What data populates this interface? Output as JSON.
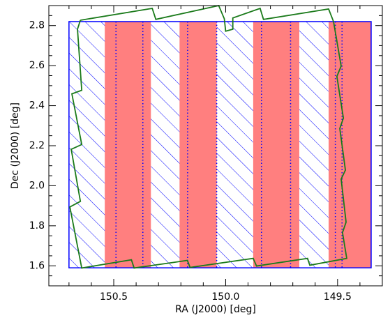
{
  "chart_data": {
    "type": "footprint",
    "xlabel": "RA (J2000) [deg]",
    "ylabel": "Dec (J2000) [deg]",
    "xlim": [
      150.79,
      149.3
    ],
    "ylim": [
      1.5,
      2.9
    ],
    "xticks": [
      150.5,
      {
        "value": 150.0,
        "label": "150.0"
      },
      149.5
    ],
    "yticks": [
      1.6,
      1.8,
      {
        "value": 2.0,
        "label": "2.0"
      },
      2.2,
      2.4,
      2.6,
      2.8
    ],
    "xminorticks": [
      150.7,
      150.6,
      150.4,
      150.3,
      150.2,
      150.1,
      149.9,
      149.8,
      149.7,
      149.6,
      149.4
    ],
    "yminorticks": [
      1.55,
      1.65,
      1.7,
      1.75,
      1.85,
      1.9,
      1.95,
      2.05,
      2.1,
      2.15,
      2.25,
      2.3,
      2.35,
      2.45,
      2.5,
      2.55,
      2.65,
      2.7,
      2.75,
      2.85
    ],
    "field": {
      "color": "#0000ff",
      "ra": [
        150.7,
        149.35
      ],
      "dec": [
        1.59,
        2.82
      ]
    },
    "stripes": {
      "color": "#ff7f7f",
      "ra": [
        [
          150.54,
          150.334
        ],
        [
          150.206,
          150.04
        ],
        [
          149.877,
          149.671
        ],
        [
          149.54,
          149.35
        ]
      ]
    },
    "dotted": {
      "color": "#0000ff",
      "ra": [
        150.49,
        150.37,
        150.17,
        150.04,
        149.84,
        149.71,
        149.51,
        149.48
      ]
    },
    "outline": {
      "color": "#1a7a1a",
      "ra": [
        150.649,
        150.328,
        150.312,
        150.031,
        150.006,
        150.0,
        149.968,
        149.968,
        149.846,
        149.831,
        149.54,
        149.518,
        149.484,
        149.503,
        149.474,
        149.49,
        149.465,
        149.484,
        149.462,
        149.478,
        149.459,
        149.624,
        149.634,
        149.862,
        149.877,
        150.159,
        150.171,
        150.409,
        150.421,
        150.643,
        150.696,
        150.649,
        150.69,
        150.643,
        150.687,
        150.643,
        150.662,
        150.649
      ],
      "dec": [
        2.827,
        2.886,
        2.831,
        2.9,
        2.834,
        2.772,
        2.782,
        2.838,
        2.886,
        2.831,
        2.883,
        2.82,
        2.598,
        2.546,
        2.338,
        2.286,
        2.078,
        2.033,
        1.818,
        1.766,
        1.637,
        1.603,
        1.637,
        1.599,
        1.637,
        1.592,
        1.627,
        1.589,
        1.63,
        1.589,
        1.894,
        1.922,
        2.182,
        2.206,
        2.459,
        2.477,
        2.782,
        2.827
      ]
    }
  }
}
